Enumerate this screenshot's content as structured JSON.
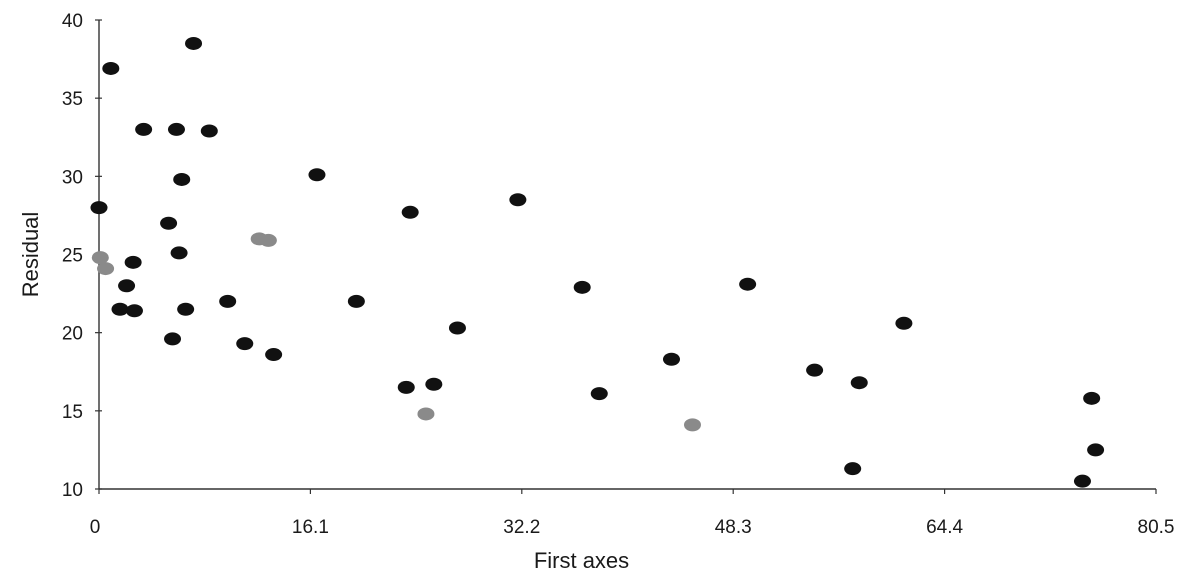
{
  "chart_data": {
    "type": "scatter",
    "title": "",
    "xlabel": "First axes",
    "ylabel": "Residual",
    "xlim": [
      0,
      80.5
    ],
    "ylim": [
      10,
      40
    ],
    "x_ticks": [
      0,
      16.1,
      32.2,
      48.3,
      64.4,
      80.5
    ],
    "x_tick_labels": [
      "0",
      "16.1",
      "32.2",
      "48.3",
      "64.4",
      "80.5"
    ],
    "y_ticks": [
      10,
      15,
      20,
      25,
      30,
      35,
      40
    ],
    "y_tick_labels": [
      "10",
      "15",
      "20",
      "25",
      "30",
      "35",
      "40"
    ],
    "grid": false,
    "legend": "none",
    "colors": {
      "dark_points": "#111111",
      "gray_points": "#8a8a8a",
      "axis": "#333333"
    },
    "series": [
      {
        "color": "#111111",
        "points": [
          {
            "x": 0.0,
            "y": 28.0
          },
          {
            "x": 0.9,
            "y": 36.9
          },
          {
            "x": 1.6,
            "y": 21.5
          },
          {
            "x": 2.1,
            "y": 23.0
          },
          {
            "x": 2.6,
            "y": 24.5
          },
          {
            "x": 2.7,
            "y": 21.4
          },
          {
            "x": 3.4,
            "y": 33.0
          },
          {
            "x": 5.3,
            "y": 27.0
          },
          {
            "x": 5.6,
            "y": 19.6
          },
          {
            "x": 5.9,
            "y": 33.0
          },
          {
            "x": 6.1,
            "y": 25.1
          },
          {
            "x": 6.3,
            "y": 29.8
          },
          {
            "x": 6.6,
            "y": 21.5
          },
          {
            "x": 7.2,
            "y": 38.5
          },
          {
            "x": 8.4,
            "y": 32.9
          },
          {
            "x": 9.8,
            "y": 22.0
          },
          {
            "x": 11.1,
            "y": 19.3
          },
          {
            "x": 13.3,
            "y": 18.6
          },
          {
            "x": 16.6,
            "y": 30.1
          },
          {
            "x": 19.6,
            "y": 22.0
          },
          {
            "x": 23.4,
            "y": 16.5
          },
          {
            "x": 23.7,
            "y": 27.7
          },
          {
            "x": 25.5,
            "y": 16.7
          },
          {
            "x": 27.3,
            "y": 20.3
          },
          {
            "x": 31.9,
            "y": 28.5
          },
          {
            "x": 36.8,
            "y": 22.9
          },
          {
            "x": 38.1,
            "y": 16.1
          },
          {
            "x": 43.6,
            "y": 18.3
          },
          {
            "x": 49.4,
            "y": 23.1
          },
          {
            "x": 54.5,
            "y": 17.6
          },
          {
            "x": 57.4,
            "y": 11.3
          },
          {
            "x": 57.9,
            "y": 16.8
          },
          {
            "x": 61.3,
            "y": 20.6
          },
          {
            "x": 74.9,
            "y": 10.5
          },
          {
            "x": 75.6,
            "y": 15.8
          },
          {
            "x": 75.9,
            "y": 12.5
          }
        ]
      },
      {
        "color": "#8a8a8a",
        "points": [
          {
            "x": 0.1,
            "y": 24.8
          },
          {
            "x": 0.5,
            "y": 24.1
          },
          {
            "x": 12.2,
            "y": 26.0
          },
          {
            "x": 12.9,
            "y": 25.9
          },
          {
            "x": 24.9,
            "y": 14.8
          },
          {
            "x": 45.2,
            "y": 14.1
          }
        ]
      }
    ]
  }
}
